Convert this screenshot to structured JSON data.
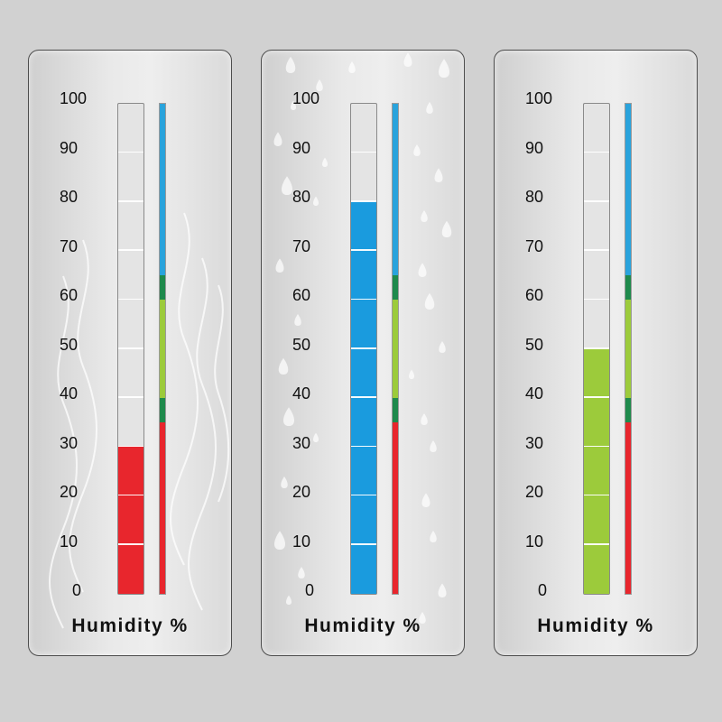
{
  "gauges": [
    {
      "caption": "Humidity %",
      "value": 30,
      "fill_color": "#e8262d",
      "decor": "vapor-waves"
    },
    {
      "caption": "Humidity %",
      "value": 80,
      "fill_color": "#1a9bde",
      "decor": "water-drops"
    },
    {
      "caption": "Humidity %",
      "value": 50,
      "fill_color": "#9ccb3b",
      "decor": "none"
    }
  ],
  "ticks": [
    "100",
    "90",
    "80",
    "70",
    "60",
    "50",
    "40",
    "30",
    "20",
    "10",
    "0"
  ],
  "scale_zones": [
    {
      "from": 0,
      "to": 35,
      "color": "#e8262d"
    },
    {
      "from": 35,
      "to": 40,
      "color": "#1e8a4c"
    },
    {
      "from": 40,
      "to": 60,
      "color": "#9ccb3b"
    },
    {
      "from": 60,
      "to": 65,
      "color": "#1e8a4c"
    },
    {
      "from": 65,
      "to": 100,
      "color": "#29a3dc"
    }
  ],
  "colors": {
    "background": "#d1d1d1",
    "panel_border": "#4d4d4d"
  }
}
